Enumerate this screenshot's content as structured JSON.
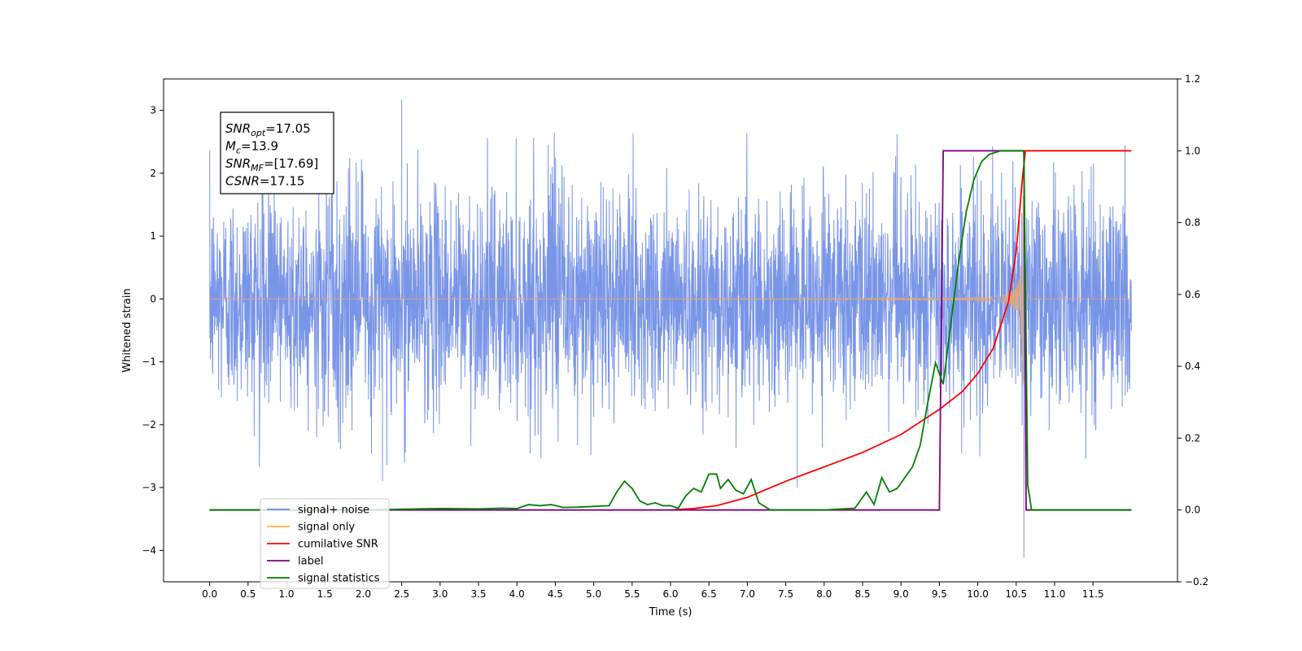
{
  "chart_data": {
    "type": "line",
    "xlabel": "Time (s)",
    "ylabel_left": "Whitened strain",
    "xlim": [
      -0.6,
      12.6
    ],
    "ylim_left": [
      -4.5,
      3.5
    ],
    "ylim_right": [
      -0.2,
      1.2
    ],
    "x_ticks": [
      0.0,
      0.5,
      1.0,
      1.5,
      2.0,
      2.5,
      3.0,
      3.5,
      4.0,
      4.5,
      5.0,
      5.5,
      6.0,
      6.5,
      7.0,
      7.5,
      8.0,
      8.5,
      9.0,
      9.5,
      10.0,
      10.5,
      11.0,
      11.5
    ],
    "x_tick_labels": [
      "0.0",
      "0.5",
      "1.0",
      "1.5",
      "2.0",
      "2.5",
      "3.0",
      "3.5",
      "4.0",
      "4.5",
      "5.0",
      "5.5",
      "6.0",
      "6.5",
      "7.0",
      "7.5",
      "8.0",
      "8.5",
      "9.0",
      "9.5",
      "10.0",
      "10.5",
      "11.0",
      "11.5"
    ],
    "y_ticks_left": [
      -4,
      -3,
      -2,
      -1,
      0,
      1,
      2,
      3
    ],
    "y_tick_labels_left": [
      "−4",
      "−3",
      "−2",
      "−1",
      "0",
      "1",
      "2",
      "3"
    ],
    "y_ticks_right": [
      -0.2,
      0.0,
      0.2,
      0.4,
      0.6,
      0.8,
      1.0,
      1.2
    ],
    "y_tick_labels_right": [
      "−0.2",
      "0.0",
      "0.2",
      "0.4",
      "0.6",
      "0.8",
      "1.0",
      "1.2"
    ],
    "grid": false,
    "legend_position": "lower-left",
    "annotation": {
      "lines": [
        {
          "base": "SNR",
          "sub": "opt",
          "text": "=17.05"
        },
        {
          "base": "M",
          "sub": "c",
          "text": "=13.9"
        },
        {
          "base": "SNR",
          "sub": "MF",
          "text": "=[17.69]"
        },
        {
          "base": "CSNR",
          "sub": "",
          "text": "=17.15"
        }
      ]
    },
    "series": [
      {
        "name": "signal+ noise",
        "color": "#6a8ae6",
        "axis": "left",
        "x_range": [
          0.0,
          12.0
        ],
        "noise_std": 0.85,
        "noise_max": 3.17,
        "noise_min": -4.12
      },
      {
        "name": "signal only",
        "color": "#ffb347",
        "axis": "left",
        "x_range": [
          0.0,
          12.0
        ],
        "merger_time": 10.6
      },
      {
        "name": "cumilative SNR",
        "color": "#ff0000",
        "axis": "right",
        "x": [
          6.0,
          6.3,
          6.6,
          7.0,
          7.5,
          8.0,
          8.5,
          9.0,
          9.5,
          9.8,
          10.0,
          10.2,
          10.4,
          10.5,
          10.58,
          10.62,
          10.65,
          11.0,
          11.5,
          12.0
        ],
        "y": [
          0.0,
          0.004,
          0.012,
          0.035,
          0.08,
          0.12,
          0.16,
          0.21,
          0.28,
          0.33,
          0.38,
          0.45,
          0.58,
          0.72,
          0.92,
          1.0,
          1.0,
          1.0,
          1.0,
          1.0
        ]
      },
      {
        "name": "label",
        "color": "#800080",
        "axis": "right",
        "x": [
          0.0,
          9.5,
          9.55,
          10.6,
          10.63,
          12.0
        ],
        "y": [
          0.0,
          0.0,
          1.0,
          1.0,
          0.0,
          0.0
        ]
      },
      {
        "name": "signal statistics",
        "color": "#008000",
        "axis": "right",
        "x": [
          0.0,
          0.5,
          1.0,
          1.5,
          2.0,
          2.5,
          2.7,
          3.0,
          3.5,
          3.8,
          4.0,
          4.15,
          4.3,
          4.45,
          4.6,
          4.8,
          5.0,
          5.2,
          5.3,
          5.4,
          5.5,
          5.6,
          5.7,
          5.8,
          5.9,
          6.0,
          6.1,
          6.2,
          6.3,
          6.4,
          6.5,
          6.6,
          6.65,
          6.75,
          6.85,
          6.95,
          7.05,
          7.15,
          7.3,
          7.6,
          8.0,
          8.4,
          8.55,
          8.65,
          8.75,
          8.85,
          8.95,
          9.05,
          9.15,
          9.25,
          9.35,
          9.45,
          9.55,
          9.65,
          9.75,
          9.85,
          9.95,
          10.05,
          10.15,
          10.3,
          10.5,
          10.55,
          10.6,
          10.65,
          10.7,
          12.0
        ],
        "y": [
          0.0,
          0.0,
          0.0,
          0.0,
          0.0,
          0.002,
          0.003,
          0.004,
          0.003,
          0.005,
          0.004,
          0.015,
          0.012,
          0.015,
          0.007,
          0.008,
          0.01,
          0.012,
          0.05,
          0.08,
          0.06,
          0.025,
          0.015,
          0.02,
          0.012,
          0.012,
          0.005,
          0.04,
          0.06,
          0.05,
          0.1,
          0.1,
          0.06,
          0.085,
          0.055,
          0.045,
          0.085,
          0.02,
          0.0,
          0.0,
          0.0,
          0.005,
          0.05,
          0.015,
          0.09,
          0.05,
          0.06,
          0.09,
          0.12,
          0.18,
          0.3,
          0.41,
          0.35,
          0.52,
          0.69,
          0.83,
          0.92,
          0.97,
          0.99,
          1.0,
          1.0,
          1.0,
          1.0,
          0.07,
          0.0,
          0.0
        ]
      }
    ]
  }
}
